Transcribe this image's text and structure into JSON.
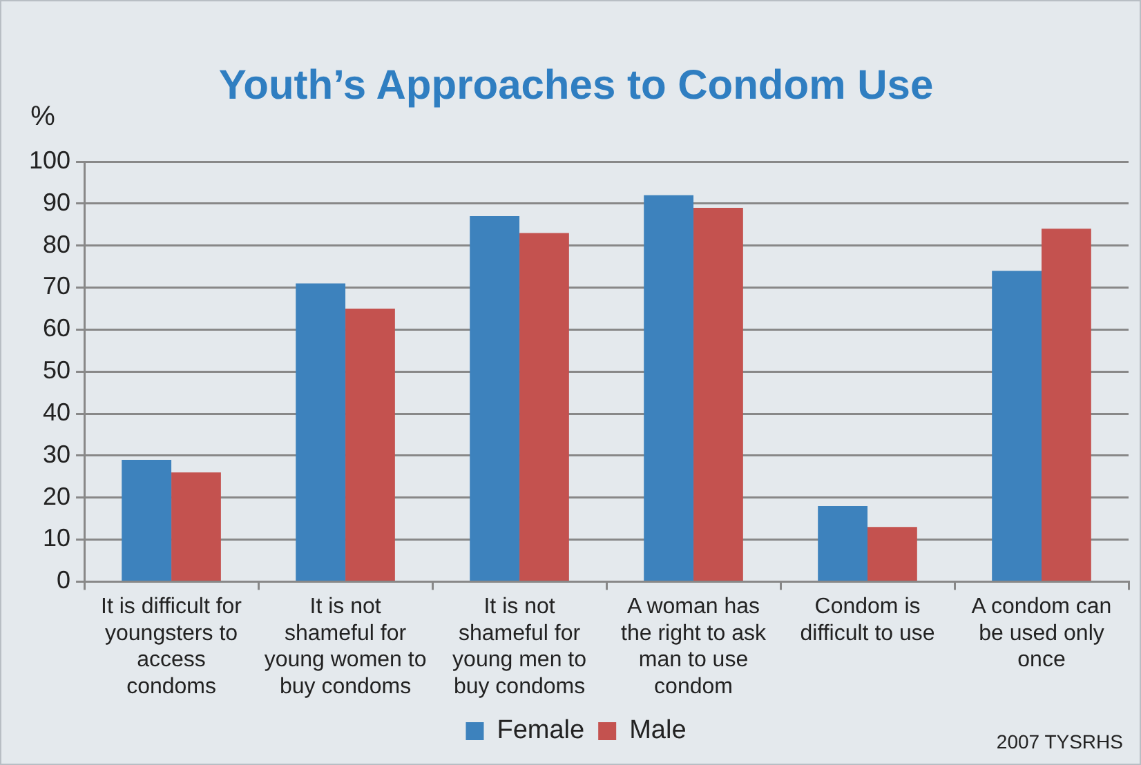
{
  "chart_data": {
    "type": "bar",
    "title": "Youth’s Approaches to Condom Use",
    "ylabel": "%",
    "categories": [
      "It is difficult for youngsters to access condoms",
      "It is not shameful for young women to buy condoms",
      "It is not shameful for young men to buy condoms",
      "A woman has the right to ask man to use condom",
      "Condom is difficult to use",
      "A condom can be used only once"
    ],
    "series": [
      {
        "name": "Female",
        "color": "#3d82bd",
        "values": [
          29,
          71,
          87,
          92,
          18,
          74
        ]
      },
      {
        "name": "Male",
        "color": "#c4524f",
        "values": [
          26,
          65,
          83,
          89,
          13,
          84
        ]
      }
    ],
    "ylim": [
      0,
      100
    ],
    "yticks": [
      0,
      10,
      20,
      30,
      40,
      50,
      60,
      70,
      80,
      90,
      100
    ],
    "grid": "y",
    "legend": "bottom",
    "annotations": [
      "2007 TYSRHS"
    ]
  }
}
